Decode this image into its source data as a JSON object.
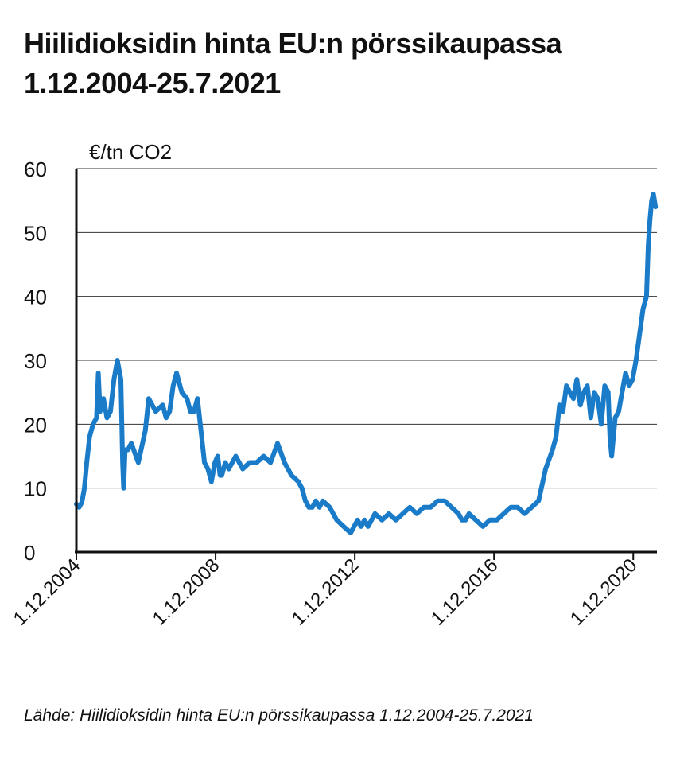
{
  "title_line1": "Hiilidioksidin hinta EU:n pörssikaupassa",
  "title_line2": "1.12.2004-25.7.2021",
  "source": "Lähde: Hiilidioksidin hinta EU:n pörssikaupassa 1.12.2004-25.7.2021",
  "colors": {
    "line": "#1a7bc8",
    "grid": "#333333",
    "axis": "#111111"
  },
  "chart_data": {
    "type": "line",
    "ylabel": "€/tn CO2",
    "ylim": [
      0,
      60
    ],
    "yticks": [
      0,
      10,
      20,
      30,
      40,
      50,
      60
    ],
    "xlim": [
      2004.92,
      2021.6
    ],
    "xticks": [
      {
        "x": 2004.92,
        "label": "1.12.2004"
      },
      {
        "x": 2008.92,
        "label": "1.12.2008"
      },
      {
        "x": 2012.92,
        "label": "1.12.2012"
      },
      {
        "x": 2016.92,
        "label": "1.12.2016"
      },
      {
        "x": 2020.92,
        "label": "1.12.2020"
      }
    ],
    "grid": true,
    "series": [
      {
        "name": "Hiilidioksidin hinta (€/tn)",
        "x": [
          2004.92,
          2005.0,
          2005.08,
          2005.15,
          2005.22,
          2005.3,
          2005.4,
          2005.5,
          2005.55,
          2005.6,
          2005.7,
          2005.8,
          2005.9,
          2006.0,
          2006.1,
          2006.2,
          2006.25,
          2006.28,
          2006.32,
          2006.35,
          2006.4,
          2006.5,
          2006.7,
          2006.9,
          2007.0,
          2007.2,
          2007.4,
          2007.5,
          2007.6,
          2007.7,
          2007.8,
          2007.95,
          2008.1,
          2008.2,
          2008.3,
          2008.4,
          2008.5,
          2008.6,
          2008.7,
          2008.8,
          2008.9,
          2008.98,
          2009.05,
          2009.1,
          2009.2,
          2009.3,
          2009.5,
          2009.7,
          2009.9,
          2010.1,
          2010.3,
          2010.5,
          2010.7,
          2010.9,
          2011.1,
          2011.3,
          2011.4,
          2011.5,
          2011.6,
          2011.7,
          2011.8,
          2011.9,
          2012.0,
          2012.2,
          2012.4,
          2012.6,
          2012.8,
          2013.0,
          2013.1,
          2013.2,
          2013.3,
          2013.5,
          2013.7,
          2013.9,
          2014.1,
          2014.3,
          2014.5,
          2014.7,
          2014.9,
          2015.1,
          2015.3,
          2015.5,
          2015.7,
          2015.9,
          2016.0,
          2016.1,
          2016.2,
          2016.4,
          2016.6,
          2016.8,
          2017.0,
          2017.2,
          2017.4,
          2017.6,
          2017.8,
          2018.0,
          2018.2,
          2018.4,
          2018.6,
          2018.7,
          2018.8,
          2018.9,
          2019.0,
          2019.1,
          2019.2,
          2019.3,
          2019.4,
          2019.5,
          2019.6,
          2019.7,
          2019.8,
          2019.9,
          2020.0,
          2020.1,
          2020.2,
          2020.25,
          2020.3,
          2020.4,
          2020.5,
          2020.6,
          2020.7,
          2020.8,
          2020.9,
          2021.0,
          2021.1,
          2021.2,
          2021.3,
          2021.35,
          2021.4,
          2021.45,
          2021.5,
          2021.56
        ],
        "values": [
          7.5,
          7,
          7.8,
          10,
          14,
          18,
          20,
          21,
          28,
          22,
          24,
          21,
          22,
          27,
          30,
          27,
          14,
          10,
          16,
          16,
          16,
          17,
          14,
          19,
          24,
          22,
          23,
          21,
          22,
          26,
          28,
          25,
          24,
          22,
          22,
          24,
          19,
          14,
          13,
          11,
          14,
          15,
          12,
          12,
          14,
          13,
          15,
          13,
          14,
          14,
          15,
          14,
          17,
          14,
          12,
          11,
          10,
          8,
          7,
          7,
          8,
          7,
          8,
          7,
          5,
          4,
          3,
          5,
          4,
          5,
          4,
          6,
          5,
          6,
          5,
          6,
          7,
          6,
          7,
          7,
          8,
          8,
          7,
          6,
          5,
          5,
          6,
          5,
          4,
          5,
          5,
          6,
          7,
          7,
          6,
          7,
          8,
          13,
          16,
          18,
          23,
          22,
          26,
          25,
          24,
          27,
          23,
          25,
          26,
          21,
          25,
          24,
          20,
          26,
          25,
          18,
          15,
          21,
          22,
          25,
          28,
          26,
          27,
          30,
          34,
          38,
          40,
          48,
          52,
          55,
          56,
          54
        ]
      }
    ]
  }
}
